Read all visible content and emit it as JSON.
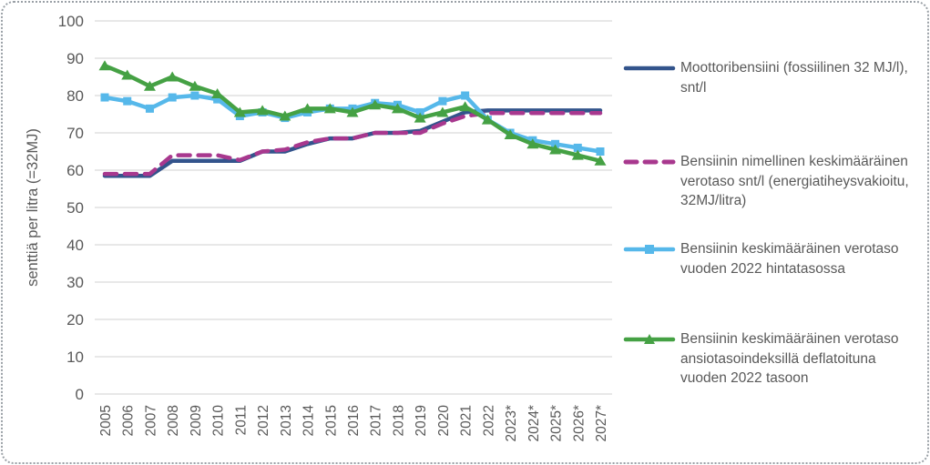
{
  "chart_data": {
    "type": "line",
    "title": "",
    "xlabel": "",
    "ylabel": "senttiä per litra (=32MJ)",
    "ylim": [
      0,
      100
    ],
    "ytick_step": 10,
    "grid": true,
    "legend_position": "right",
    "gridline_color": "#d9d9d9",
    "text_color": "#595959",
    "categories": [
      "2005",
      "2006",
      "2007",
      "2008",
      "2009",
      "2010",
      "2011",
      "2012",
      "2013",
      "2014",
      "2015",
      "2016",
      "2017",
      "2018",
      "2019",
      "2020",
      "2021",
      "2022",
      "2023*",
      "2024*",
      "2025*",
      "2026*",
      "2027*"
    ],
    "series": [
      {
        "name": "Moottoribensiini (fossiilinen 32 MJ/l), snt/l",
        "color": "#33548C",
        "style": "solid",
        "marker": "none",
        "values": [
          58.5,
          58.5,
          58.5,
          62.5,
          62.5,
          62.5,
          62.5,
          65,
          65,
          67,
          68.5,
          68.5,
          70,
          70,
          70.5,
          73,
          75.5,
          76,
          76,
          76,
          76,
          76,
          76
        ]
      },
      {
        "name": "Bensiinin nimellinen keskimääräinen verotaso snt/l (energiatiheysvakioitu, 32MJ/litra)",
        "color": "#A8388E",
        "style": "dashed",
        "marker": "none",
        "values": [
          59,
          59,
          59,
          64,
          64,
          64,
          62.7,
          65,
          65.5,
          67.5,
          68.5,
          68.5,
          70,
          70,
          70,
          72.5,
          74.5,
          75.3,
          75.3,
          75.3,
          75.3,
          75.3,
          75.3
        ]
      },
      {
        "name": "Bensiinin keskimääräinen verotaso vuoden 2022 hintatasossa",
        "color": "#56B8EA",
        "style": "solid",
        "marker": "square",
        "values": [
          79.5,
          78.5,
          76.5,
          79.5,
          80,
          79,
          74.5,
          75.5,
          74,
          75.5,
          76.5,
          76.5,
          78,
          77.5,
          75.5,
          78.5,
          80,
          73.5,
          70,
          68,
          67,
          66,
          65
        ]
      },
      {
        "name": "Bensiinin keskimääräinen verotaso ansiotasoindeksillä deflatoituna vuoden 2022 tasoon",
        "color": "#45A144",
        "style": "solid",
        "marker": "triangle",
        "values": [
          88,
          85.5,
          82.5,
          85,
          82.5,
          80.5,
          75.5,
          76,
          74.5,
          76.5,
          76.5,
          75.5,
          77.5,
          76.5,
          74,
          75.5,
          77,
          73.5,
          69.5,
          67,
          65.5,
          64,
          62.5
        ]
      }
    ]
  }
}
